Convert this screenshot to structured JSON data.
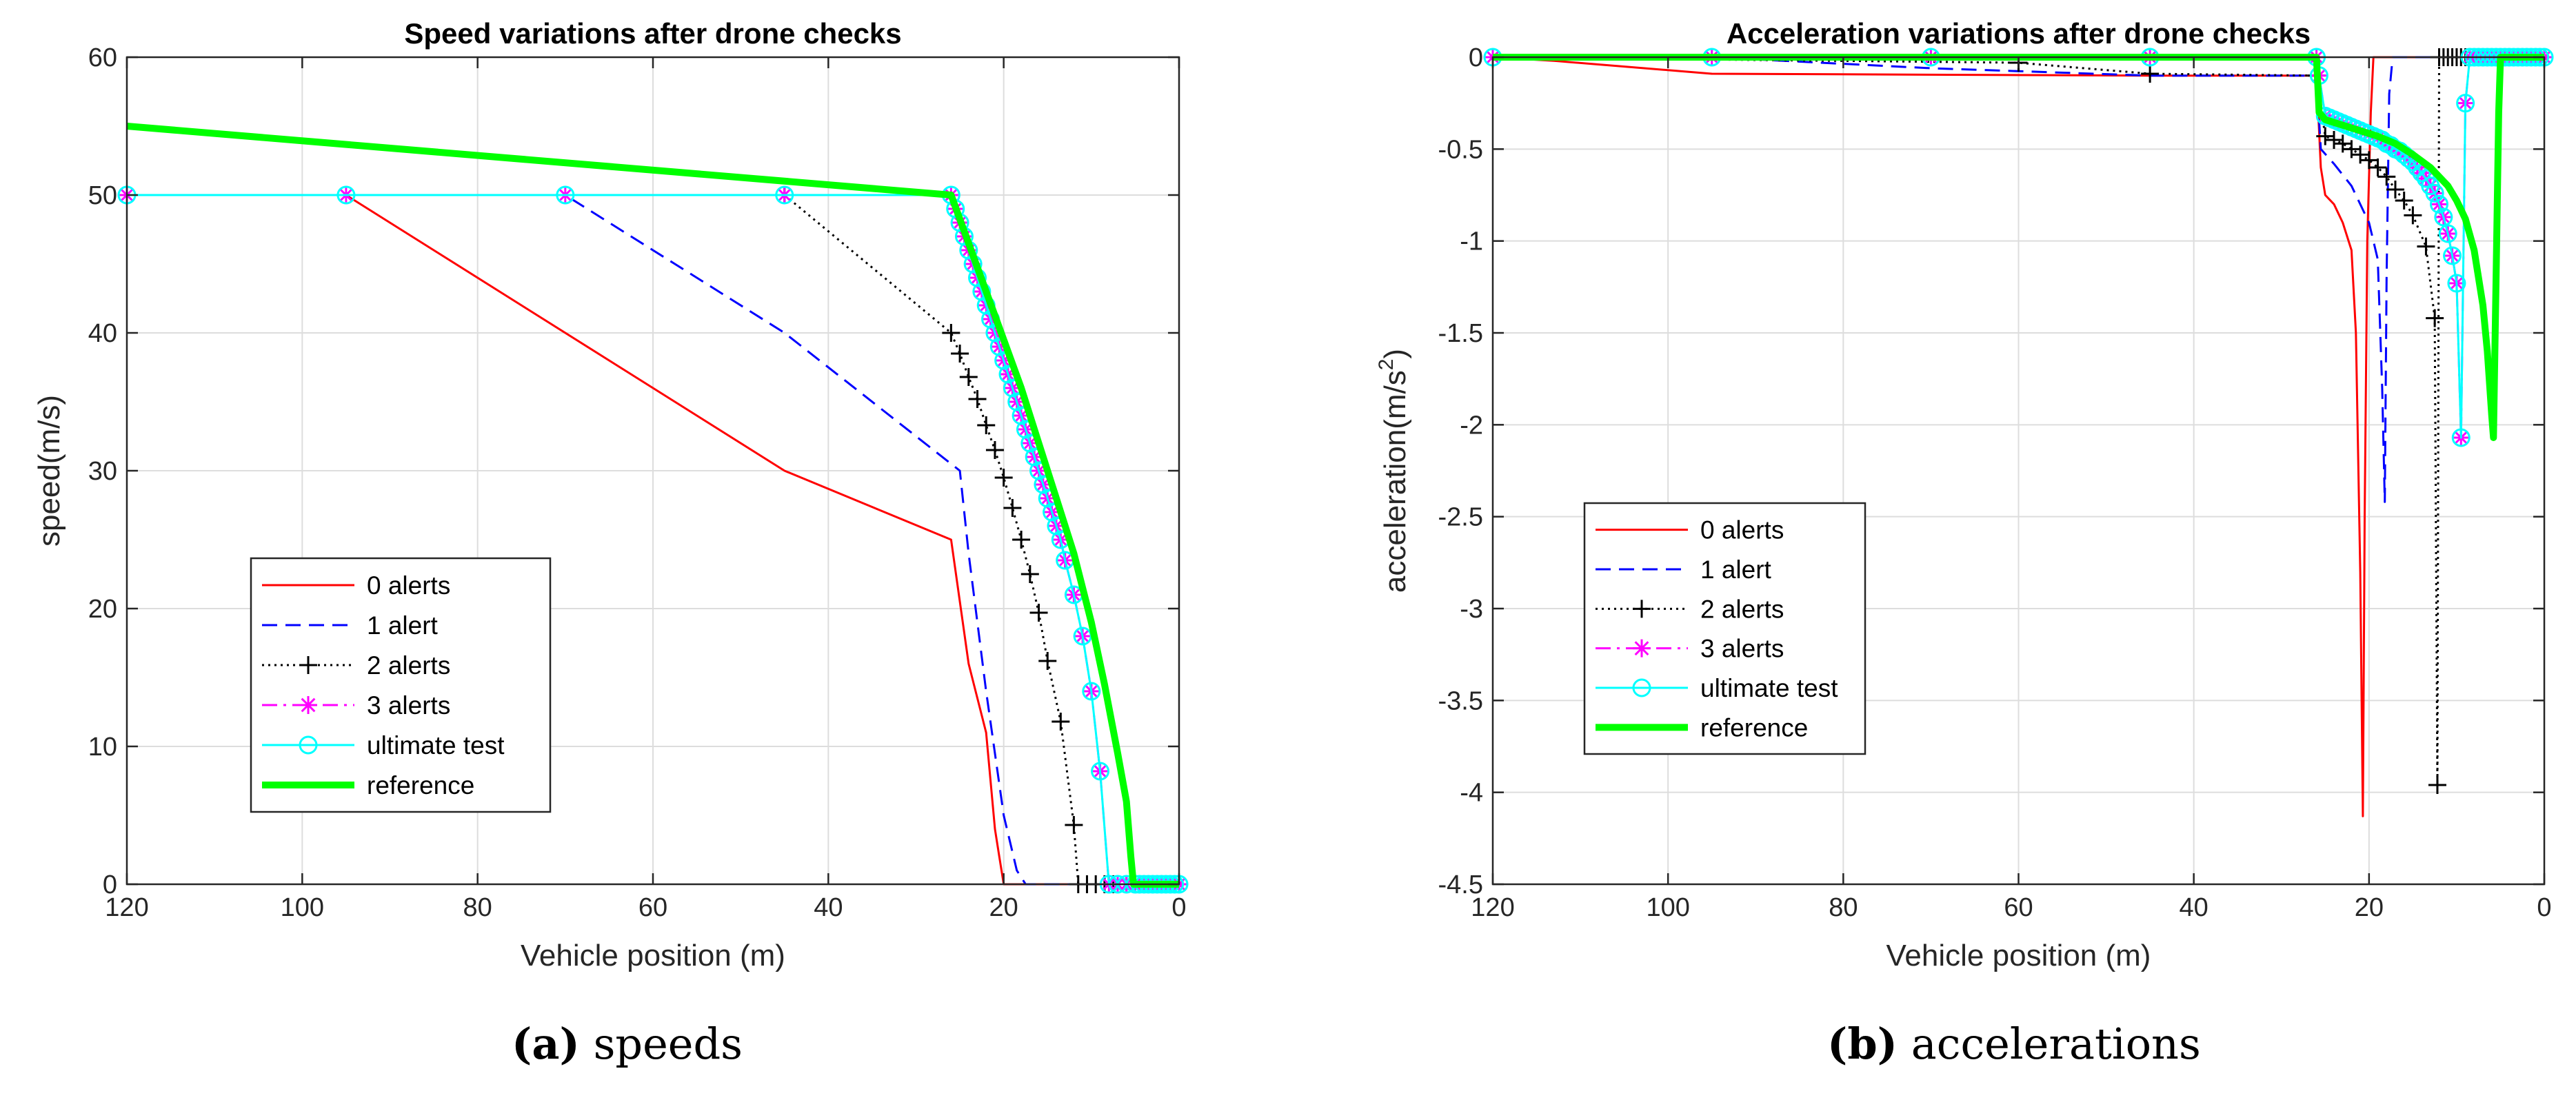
{
  "chart_data": [
    {
      "type": "line",
      "title": "Speed variations after drone checks",
      "xlabel": "Vehicle position (m)",
      "ylabel": "speed(m/s)",
      "xlim": [
        120,
        0
      ],
      "ylim": [
        0,
        60
      ],
      "x_reversed": true,
      "grid": true,
      "legend_position": "lower-left",
      "xticks": [
        120,
        100,
        80,
        60,
        40,
        20,
        0
      ],
      "yticks": [
        0,
        10,
        20,
        30,
        40,
        50,
        60
      ],
      "xtick_labels": [
        "120",
        "100",
        "80",
        "60",
        "40",
        "20",
        "0"
      ],
      "ytick_labels": [
        "0",
        "10",
        "20",
        "30",
        "40",
        "50",
        "60"
      ],
      "series": [
        {
          "name": "0 alerts",
          "color": "#ff0000",
          "style": "solid",
          "marker": "none",
          "x": [
            120,
            95,
            45,
            26,
            24,
            22,
            21,
            20.5,
            20,
            19.5,
            0
          ],
          "y": [
            50,
            50,
            30,
            25,
            16,
            11,
            4,
            2,
            0,
            0,
            0
          ]
        },
        {
          "name": "1 alert",
          "color": "#0000ff",
          "style": "dashed",
          "marker": "none",
          "x": [
            120,
            70,
            45,
            25,
            24,
            22,
            20,
            18.5,
            17.5,
            0
          ],
          "y": [
            50,
            50,
            40,
            30,
            24,
            14,
            5,
            1,
            0,
            0
          ]
        },
        {
          "name": "2 alerts",
          "color": "#000000",
          "style": "dotted",
          "marker": "plus",
          "x": [
            120,
            45,
            26,
            25,
            24,
            23,
            22,
            21,
            20,
            19,
            18,
            17,
            16,
            15,
            13.5,
            12,
            11.5,
            10.5,
            9.5,
            8.5,
            7.5,
            6,
            0
          ],
          "y": [
            50,
            50,
            40,
            38.5,
            36.8,
            35.2,
            33.3,
            31.5,
            29.5,
            27.3,
            25,
            22.5,
            19.7,
            16.2,
            11.8,
            4.3,
            0,
            0,
            0,
            0,
            0,
            0,
            0
          ]
        },
        {
          "name": "3 alerts",
          "color": "#ff00ff",
          "style": "dashdot",
          "marker": "asterisk",
          "x": [
            120,
            95,
            70,
            45,
            26,
            25.5,
            25,
            24.5,
            24,
            23.5,
            23,
            22.5,
            22,
            21.5,
            21,
            20.5,
            20,
            19.5,
            19,
            18.5,
            18,
            17.5,
            17,
            16.5,
            16,
            15.5,
            15,
            14.5,
            14,
            13.5,
            13,
            12,
            11,
            10,
            9,
            8,
            7,
            6,
            5,
            4.5,
            4,
            3.5,
            3,
            2.5,
            2,
            1.5,
            1,
            0.5,
            0
          ],
          "y": [
            50,
            50,
            50,
            50,
            50,
            49,
            48,
            47,
            46,
            45,
            44,
            43,
            42,
            41,
            40,
            39,
            38,
            37,
            36,
            35,
            34,
            33,
            32,
            31,
            30,
            29,
            28,
            27,
            26,
            25,
            23.5,
            21,
            18,
            14,
            8.2,
            0,
            0,
            0,
            0,
            0,
            0,
            0,
            0,
            0,
            0,
            0,
            0,
            0,
            0
          ]
        },
        {
          "name": "ultimate test",
          "color": "#00ffff",
          "style": "solid",
          "marker": "circle",
          "x": [
            120,
            95,
            70,
            45,
            26,
            25.5,
            25,
            24.5,
            24,
            23.5,
            23,
            22.5,
            22,
            21.5,
            21,
            20.5,
            20,
            19.5,
            19,
            18.5,
            18,
            17.5,
            17,
            16.5,
            16,
            15.5,
            15,
            14.5,
            14,
            13.5,
            13,
            12,
            11,
            10,
            9,
            8,
            7,
            6,
            5,
            4.5,
            4,
            3.5,
            3,
            2.5,
            2,
            1.5,
            1,
            0.5,
            0
          ],
          "y": [
            50,
            50,
            50,
            50,
            50,
            49,
            48,
            47,
            46,
            45,
            44,
            43,
            42,
            41,
            40,
            39,
            38,
            37,
            36,
            35,
            34,
            33,
            32,
            31,
            30,
            29,
            28,
            27,
            26,
            25,
            23.5,
            21,
            18,
            14,
            8.2,
            0,
            0,
            0,
            0,
            0,
            0,
            0,
            0,
            0,
            0,
            0,
            0,
            0,
            0
          ]
        },
        {
          "name": "reference",
          "color": "#00ff00",
          "style": "solid",
          "marker": "none",
          "width": "bold",
          "x": [
            120,
            26,
            24,
            22,
            20,
            18,
            16,
            14,
            12,
            10,
            8.5,
            7,
            6,
            5.5,
            5.2,
            0
          ],
          "y": [
            55,
            50,
            46.5,
            43,
            39.5,
            36,
            32,
            28,
            24,
            19,
            14.5,
            9.5,
            6,
            2,
            0,
            0
          ]
        }
      ]
    },
    {
      "type": "line",
      "title": "Acceleration variations after drone checks",
      "xlabel": "Vehicle position (m)",
      "ylabel": "acceleration(m/s²)",
      "ylabel_main": "acceleration(m/s",
      "ylabel_exp": "2",
      "ylabel_close": ")",
      "xlim": [
        120,
        0
      ],
      "ylim": [
        -4.5,
        0
      ],
      "x_reversed": true,
      "grid": true,
      "legend_position": "middle-left",
      "xticks": [
        120,
        100,
        80,
        60,
        40,
        20,
        0
      ],
      "yticks": [
        0,
        -0.5,
        -1,
        -1.5,
        -2,
        -2.5,
        -3,
        -3.5,
        -4,
        -4.5
      ],
      "xtick_labels": [
        "120",
        "100",
        "80",
        "60",
        "40",
        "20",
        "0"
      ],
      "ytick_labels": [
        "0",
        "-0.5",
        "-1",
        "-1.5",
        "-2",
        "-2.5",
        "-3",
        "-3.5",
        "-4",
        "-4.5"
      ],
      "series": [
        {
          "name": "0 alerts",
          "color": "#ff0000",
          "style": "solid",
          "marker": "none",
          "x": [
            120,
            113,
            95,
            45,
            26,
            25.5,
            25,
            24,
            23,
            22,
            21.5,
            21,
            20.7,
            20.5,
            20.2,
            19.8,
            19.5,
            19.2,
            0
          ],
          "y": [
            0,
            -0.02,
            -0.09,
            -0.1,
            -0.1,
            -0.6,
            -0.75,
            -0.8,
            -0.9,
            -1.05,
            -1.5,
            -2.8,
            -4.13,
            -2.5,
            -1.0,
            -0.3,
            0,
            0,
            0
          ]
        },
        {
          "name": "1 alert",
          "color": "#0000ff",
          "style": "dashed",
          "marker": "none",
          "x": [
            120,
            95,
            70,
            45,
            26,
            25.5,
            24,
            22,
            20,
            19,
            18.5,
            18.2,
            18,
            17.7,
            17.3,
            0
          ],
          "y": [
            0,
            0,
            -0.06,
            -0.1,
            -0.1,
            -0.5,
            -0.58,
            -0.7,
            -0.9,
            -1.1,
            -1.8,
            -2.42,
            -1.2,
            -0.2,
            0,
            0
          ]
        },
        {
          "name": "2 alerts",
          "color": "#000000",
          "style": "dotted",
          "marker": "plus",
          "x": [
            120,
            60,
            45,
            26,
            25,
            24,
            23,
            22,
            21,
            20,
            19,
            18,
            17,
            16,
            15,
            13.5,
            12.5,
            12.2,
            12,
            11.5,
            11,
            10.5,
            10,
            9.5,
            9,
            8.5,
            8,
            0
          ],
          "y": [
            0,
            -0.03,
            -0.09,
            -0.1,
            -0.43,
            -0.45,
            -0.47,
            -0.5,
            -0.53,
            -0.56,
            -0.6,
            -0.65,
            -0.72,
            -0.78,
            -0.86,
            -1.03,
            -1.42,
            -3.96,
            0,
            0,
            0,
            0,
            0,
            0,
            0,
            0,
            0,
            0
          ]
        },
        {
          "name": "3 alerts",
          "color": "#ff00ff",
          "style": "dashdot",
          "marker": "asterisk",
          "x": [
            120,
            95,
            70,
            45,
            26,
            25.7,
            25,
            24.5,
            24,
            23.5,
            23,
            22.5,
            22,
            21.5,
            21,
            20.5,
            20,
            19.5,
            19,
            18.5,
            18,
            17.5,
            17,
            16.5,
            16,
            15.5,
            15,
            14.5,
            14,
            13.5,
            13,
            12.5,
            12,
            11.5,
            11,
            10.5,
            10,
            9.5,
            9,
            8.5,
            8,
            7.5,
            7,
            6.5,
            6,
            5.5,
            5,
            4.5,
            4,
            3.5,
            3,
            2.5,
            2,
            1.5,
            1,
            0.5,
            0
          ],
          "y": [
            0,
            0,
            0,
            0,
            0,
            -0.1,
            -0.32,
            -0.33,
            -0.34,
            -0.35,
            -0.36,
            -0.37,
            -0.38,
            -0.39,
            -0.4,
            -0.41,
            -0.42,
            -0.43,
            -0.44,
            -0.45,
            -0.47,
            -0.48,
            -0.5,
            -0.51,
            -0.53,
            -0.55,
            -0.57,
            -0.6,
            -0.63,
            -0.66,
            -0.7,
            -0.74,
            -0.8,
            -0.87,
            -0.96,
            -1.08,
            -1.23,
            -2.07,
            -0.25,
            0,
            0,
            0,
            0,
            0,
            0,
            0,
            0,
            0,
            0,
            0,
            0,
            0,
            0,
            0,
            0,
            0,
            0
          ]
        },
        {
          "name": "ultimate test",
          "color": "#00ffff",
          "style": "solid",
          "marker": "circle",
          "x": [
            120,
            95,
            70,
            45,
            26,
            25.7,
            25,
            24.5,
            24,
            23.5,
            23,
            22.5,
            22,
            21.5,
            21,
            20.5,
            20,
            19.5,
            19,
            18.5,
            18,
            17.5,
            17,
            16.5,
            16,
            15.5,
            15,
            14.5,
            14,
            13.5,
            13,
            12.5,
            12,
            11.5,
            11,
            10.5,
            10,
            9.5,
            9,
            8.5,
            8,
            7.5,
            7,
            6.5,
            6,
            5.5,
            5,
            4.5,
            4,
            3.5,
            3,
            2.5,
            2,
            1.5,
            1,
            0.5,
            0
          ],
          "y": [
            0,
            0,
            0,
            0,
            0,
            -0.1,
            -0.32,
            -0.33,
            -0.34,
            -0.35,
            -0.36,
            -0.37,
            -0.38,
            -0.39,
            -0.4,
            -0.41,
            -0.42,
            -0.43,
            -0.44,
            -0.45,
            -0.47,
            -0.48,
            -0.5,
            -0.51,
            -0.53,
            -0.55,
            -0.57,
            -0.6,
            -0.63,
            -0.66,
            -0.7,
            -0.74,
            -0.8,
            -0.87,
            -0.96,
            -1.08,
            -1.23,
            -2.07,
            -0.25,
            0,
            0,
            0,
            0,
            0,
            0,
            0,
            0,
            0,
            0,
            0,
            0,
            0,
            0,
            0,
            0,
            0,
            0
          ]
        },
        {
          "name": "reference",
          "color": "#00ff00",
          "style": "solid",
          "marker": "none",
          "width": "bold",
          "x": [
            120,
            26,
            25.7,
            25,
            23,
            21,
            19,
            17,
            15,
            13,
            11,
            10,
            9,
            8,
            7,
            6.5,
            6,
            5.8,
            5.5,
            5.2,
            5,
            0
          ],
          "y": [
            0,
            0,
            -0.3,
            -0.34,
            -0.37,
            -0.4,
            -0.43,
            -0.47,
            -0.53,
            -0.6,
            -0.7,
            -0.78,
            -0.88,
            -1.05,
            -1.35,
            -1.6,
            -1.95,
            -2.07,
            -1.2,
            -0.3,
            0,
            0
          ]
        }
      ]
    }
  ],
  "captions": [
    {
      "label": "(a)",
      "text": "speeds"
    },
    {
      "label": "(b)",
      "text": "accelerations"
    }
  ]
}
